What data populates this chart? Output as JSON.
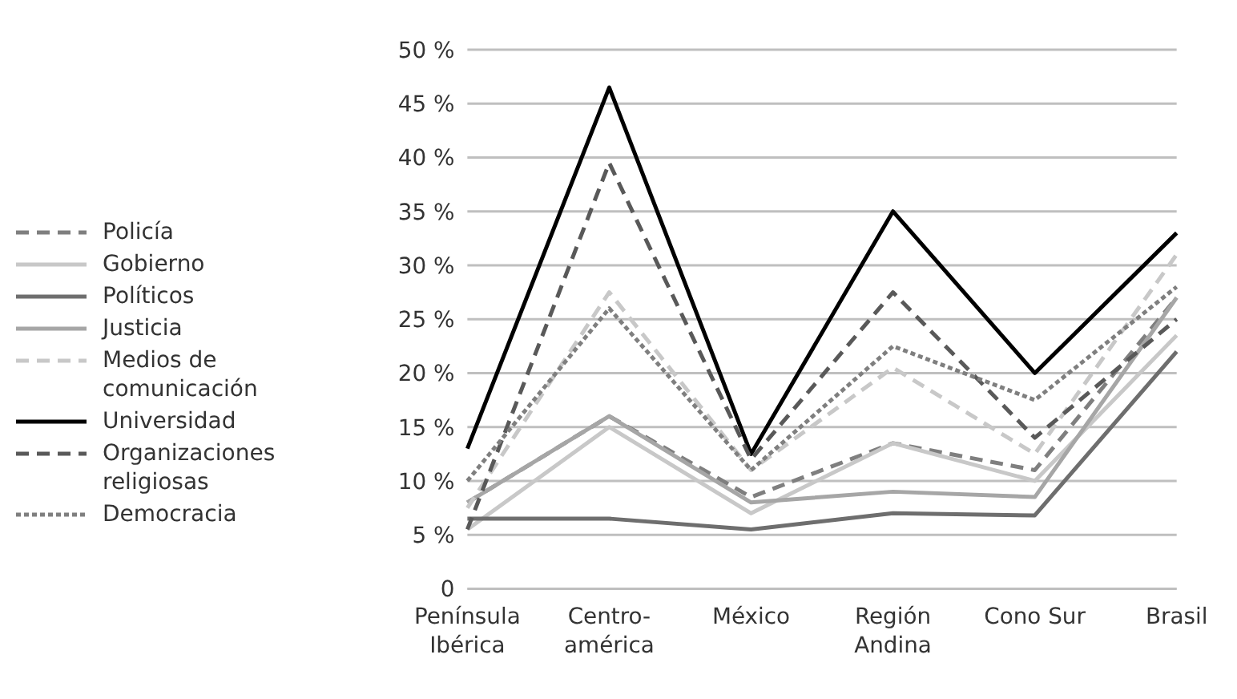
{
  "chart_data": {
    "type": "line",
    "categories": [
      "Península Ibérica",
      "Centro-américa",
      "México",
      "Región Andina",
      "Cono Sur",
      "Brasil"
    ],
    "series": [
      {
        "name": "Policía",
        "color": "#7f7f7f",
        "line_style": "dashed",
        "values": [
          8,
          16,
          8.5,
          13.5,
          11,
          27
        ]
      },
      {
        "name": "Gobierno",
        "color": "#c8c8c8",
        "line_style": "solid",
        "values": [
          5.5,
          15,
          7,
          13.5,
          10,
          23.5
        ]
      },
      {
        "name": "Políticos",
        "color": "#6e6e6e",
        "line_style": "solid",
        "values": [
          6.5,
          6.5,
          5.5,
          7,
          6.8,
          22
        ]
      },
      {
        "name": "Justicia",
        "color": "#a6a6a6",
        "line_style": "solid",
        "values": [
          8,
          16,
          8,
          9,
          8.5,
          27
        ]
      },
      {
        "name": "Medios de comunicación",
        "color": "#c8c8c8",
        "line_style": "dashed",
        "values": [
          7.5,
          27.5,
          11,
          20.5,
          12.5,
          31
        ]
      },
      {
        "name": "Universidad",
        "color": "#000000",
        "line_style": "solid",
        "values": [
          13,
          46.5,
          12.5,
          35,
          20,
          33
        ]
      },
      {
        "name": "Organizaciones religiosas",
        "color": "#595959",
        "line_style": "dashed",
        "values": [
          5.5,
          39.5,
          12,
          27.5,
          14,
          25
        ]
      },
      {
        "name": "Democracia",
        "color": "#7f7f7f",
        "line_style": "dotted",
        "values": [
          10,
          26,
          11,
          22.5,
          17.5,
          28
        ]
      }
    ],
    "ylim": [
      0,
      50
    ],
    "yticks": [
      0,
      {
        "value": 5,
        "label": "5 %"
      },
      {
        "value": 10,
        "label": "10 %"
      },
      {
        "value": 15,
        "label": "15 %"
      },
      {
        "value": 20,
        "label": "20 %"
      },
      {
        "value": 25,
        "label": "25 %"
      },
      {
        "value": 30,
        "label": "30 %"
      },
      {
        "value": 35,
        "label": "35 %"
      },
      {
        "value": 40,
        "label": "40 %"
      },
      {
        "value": 45,
        "label": "45 %"
      },
      {
        "value": 50,
        "label": "50 %"
      }
    ],
    "grid": "y",
    "legend": "left",
    "marker": "none"
  }
}
